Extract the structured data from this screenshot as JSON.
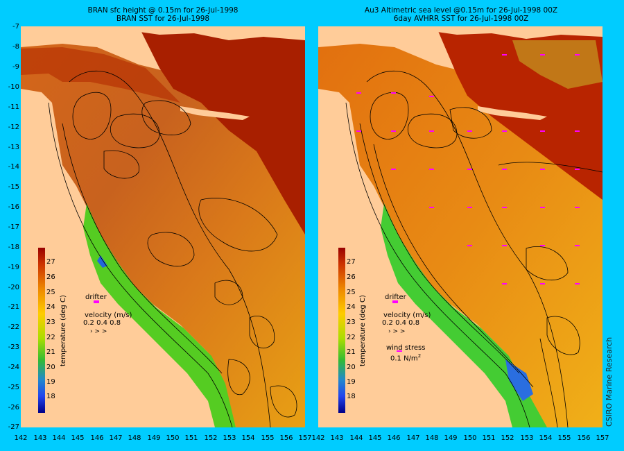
{
  "titles": {
    "left_line1": "BRAN sfc height @ 0.15m for 26-Jul-1998",
    "left_line2": "BRAN SST for 26-Jul-1998",
    "right_line1": "Au3 Altimetric sea level  @0.15m  for 26-Jul-1998 00Z",
    "right_line2": "6day AVHRR SST for 26-Jul-1998 00Z"
  },
  "axes": {
    "lat_labels": [
      "-7",
      "-8",
      "-9",
      "-10",
      "-11",
      "-12",
      "-13",
      "-14",
      "-15",
      "-16",
      "-17",
      "-18",
      "-19",
      "-20",
      "-21",
      "-22",
      "-23",
      "-24",
      "-25",
      "-26",
      "-27"
    ],
    "lon_labels": [
      "142",
      "143",
      "144",
      "145",
      "146",
      "147",
      "148",
      "149",
      "150",
      "151",
      "152",
      "153",
      "154",
      "155",
      "156",
      "157"
    ]
  },
  "colorbar": {
    "title": "temperature (deg C)",
    "labels": [
      "27",
      "26",
      "25",
      "24",
      "23",
      "22",
      "21",
      "20",
      "19",
      "18"
    ]
  },
  "legend": {
    "drifter": "drifter",
    "velocity_title": "velocity (m/s)",
    "velocity_scale": "0.2 0.4 0.8",
    "wind_title": "wind stress",
    "wind_scale": "0.1 N/m",
    "wind_exp": "2"
  },
  "credit": "CSIRO Marine Research",
  "colors": {
    "background": "#00ccff",
    "land": "#ffcc99",
    "warm": "#cc3300",
    "mid": "#e07a10",
    "cool_green": "#33cc33",
    "cold_blue": "#2266dd",
    "drifter_marker": "#ff00ff"
  }
}
